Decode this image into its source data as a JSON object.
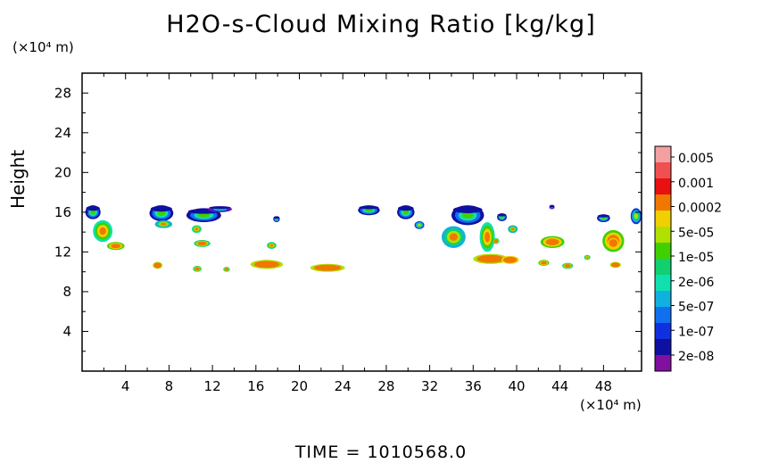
{
  "chart_data": {
    "type": "heatmap",
    "title": "H2O-s-Cloud Mixing Ratio [kg/kg]",
    "xlabel": "",
    "ylabel": "Height",
    "x_unit": "(×10⁴ m)",
    "y_unit": "(×10⁴ m)",
    "xlim": [
      0,
      51.5
    ],
    "ylim": [
      0,
      30
    ],
    "x_ticks": [
      4,
      8,
      12,
      16,
      20,
      24,
      28,
      32,
      36,
      40,
      44,
      48
    ],
    "y_ticks": [
      4,
      8,
      12,
      16,
      20,
      24,
      28
    ],
    "colorbar": {
      "labels": [
        "0.005",
        "0.001",
        "0.0002",
        "5e-05",
        "1e-05",
        "2e-06",
        "5e-07",
        "1e-07",
        "2e-08"
      ],
      "colors": [
        "#f2a0a0",
        "#f05050",
        "#e81010",
        "#f07800",
        "#f0d000",
        "#b0e000",
        "#40d000",
        "#10d070",
        "#10e0b0",
        "#10b0e0",
        "#1070f0",
        "#1030e0",
        "#1010a0",
        "#8010a0"
      ]
    },
    "footer": "TIME  =  1010568.0",
    "cloud_regions": [
      {
        "x": 0.3,
        "y": 15.3,
        "w": 1.4,
        "h": 1.4,
        "level": 12
      },
      {
        "x": 1.0,
        "y": 13.0,
        "w": 1.8,
        "h": 2.2,
        "level": 8
      },
      {
        "x": 2.3,
        "y": 12.2,
        "w": 1.6,
        "h": 0.8,
        "level": 6
      },
      {
        "x": 6.2,
        "y": 15.1,
        "w": 2.2,
        "h": 1.6,
        "level": 12
      },
      {
        "x": 6.7,
        "y": 14.4,
        "w": 1.6,
        "h": 0.8,
        "level": 9
      },
      {
        "x": 9.6,
        "y": 15.0,
        "w": 3.2,
        "h": 1.4,
        "level": 12
      },
      {
        "x": 11.6,
        "y": 16.0,
        "w": 2.2,
        "h": 0.6,
        "level": 13
      },
      {
        "x": 10.1,
        "y": 13.9,
        "w": 0.9,
        "h": 0.8,
        "level": 8
      },
      {
        "x": 10.3,
        "y": 12.5,
        "w": 1.5,
        "h": 0.7,
        "level": 7
      },
      {
        "x": 17.6,
        "y": 15.0,
        "w": 0.6,
        "h": 0.6,
        "level": 12
      },
      {
        "x": 17.0,
        "y": 12.3,
        "w": 0.9,
        "h": 0.7,
        "level": 8
      },
      {
        "x": 6.5,
        "y": 10.3,
        "w": 0.9,
        "h": 0.7,
        "level": 5
      },
      {
        "x": 10.2,
        "y": 10.0,
        "w": 0.8,
        "h": 0.6,
        "level": 7
      },
      {
        "x": 13.0,
        "y": 10.0,
        "w": 0.6,
        "h": 0.5,
        "level": 7
      },
      {
        "x": 15.5,
        "y": 10.3,
        "w": 3.0,
        "h": 0.9,
        "level": 5
      },
      {
        "x": 21.0,
        "y": 10.0,
        "w": 3.2,
        "h": 0.8,
        "level": 5
      },
      {
        "x": 25.4,
        "y": 15.7,
        "w": 2.0,
        "h": 1.0,
        "level": 12
      },
      {
        "x": 29.0,
        "y": 15.3,
        "w": 1.6,
        "h": 1.4,
        "level": 12
      },
      {
        "x": 30.6,
        "y": 14.3,
        "w": 0.9,
        "h": 0.8,
        "level": 11
      },
      {
        "x": 34.0,
        "y": 14.7,
        "w": 3.0,
        "h": 2.0,
        "level": 12
      },
      {
        "x": 33.1,
        "y": 12.4,
        "w": 2.2,
        "h": 2.2,
        "level": 9
      },
      {
        "x": 36.6,
        "y": 12.0,
        "w": 1.4,
        "h": 3.0,
        "level": 8
      },
      {
        "x": 38.2,
        "y": 15.1,
        "w": 0.9,
        "h": 0.8,
        "level": 12
      },
      {
        "x": 36.0,
        "y": 10.8,
        "w": 3.2,
        "h": 1.0,
        "level": 5
      },
      {
        "x": 38.6,
        "y": 10.8,
        "w": 1.6,
        "h": 0.8,
        "level": 4
      },
      {
        "x": 39.2,
        "y": 13.9,
        "w": 0.9,
        "h": 0.8,
        "level": 9
      },
      {
        "x": 43.0,
        "y": 16.3,
        "w": 0.5,
        "h": 0.4,
        "level": 13
      },
      {
        "x": 42.2,
        "y": 12.4,
        "w": 2.2,
        "h": 1.2,
        "level": 6
      },
      {
        "x": 42.0,
        "y": 10.6,
        "w": 1.0,
        "h": 0.6,
        "level": 6
      },
      {
        "x": 44.2,
        "y": 10.3,
        "w": 1.0,
        "h": 0.6,
        "level": 7
      },
      {
        "x": 47.4,
        "y": 15.0,
        "w": 1.2,
        "h": 0.8,
        "level": 12
      },
      {
        "x": 47.9,
        "y": 12.0,
        "w": 2.0,
        "h": 2.2,
        "level": 6
      },
      {
        "x": 48.4,
        "y": 12.4,
        "w": 1.0,
        "h": 1.0,
        "level": 4
      },
      {
        "x": 50.5,
        "y": 14.8,
        "w": 1.0,
        "h": 1.6,
        "level": 11
      },
      {
        "x": 48.6,
        "y": 10.4,
        "w": 1.0,
        "h": 0.6,
        "level": 5
      },
      {
        "x": 46.2,
        "y": 11.2,
        "w": 0.6,
        "h": 0.5,
        "level": 8
      },
      {
        "x": 37.8,
        "y": 12.8,
        "w": 0.6,
        "h": 0.6,
        "level": 7
      }
    ]
  }
}
